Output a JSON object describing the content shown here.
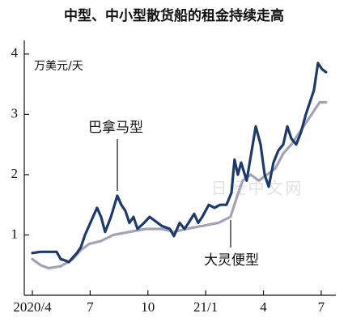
{
  "chart_data": {
    "type": "line",
    "title": "中型、中小型散货船的租金持续走高",
    "y_label": "万美元/天",
    "watermark": "日经中文网",
    "annotations": [
      "巴拿马型",
      "大灵便型"
    ],
    "xlim": [
      -0.42,
      15.76
    ],
    "xticks": [
      {
        "value": 0,
        "label": "2020/4"
      },
      {
        "value": 3,
        "label": "7"
      },
      {
        "value": 6,
        "label": "10"
      },
      {
        "value": 9,
        "label": "21/1"
      },
      {
        "value": 12,
        "label": "4"
      },
      {
        "value": 15,
        "label": "7"
      }
    ],
    "ylim": [
      0,
      4.4
    ],
    "yticks": [
      1,
      2,
      3,
      4
    ],
    "series": [
      {
        "name": "巴拿马型",
        "color": "#1d3a6b",
        "x": [
          0,
          0.42,
          0.84,
          1.26,
          1.47,
          1.68,
          1.89,
          2.31,
          2.52,
          2.73,
          3.15,
          3.36,
          3.57,
          3.78,
          4.08,
          4.41,
          4.62,
          4.83,
          5.04,
          5.25,
          5.46,
          5.8,
          6.09,
          6.3,
          6.72,
          7.14,
          7.35,
          7.65,
          7.9,
          8.11,
          8.4,
          8.61,
          8.82,
          9.16,
          9.45,
          9.75,
          10.08,
          10.34,
          10.5,
          10.67,
          10.84,
          11.13,
          11.34,
          11.6,
          11.85,
          12.06,
          12.27,
          12.52,
          12.77,
          13.03,
          13.24,
          13.45,
          13.7,
          13.95,
          14.2,
          14.41,
          14.62,
          14.83,
          15.04,
          15.25
        ],
        "values": [
          0.7,
          0.72,
          0.72,
          0.72,
          0.6,
          0.58,
          0.55,
          0.7,
          0.8,
          1.0,
          1.3,
          1.45,
          1.3,
          1.05,
          1.3,
          1.65,
          1.5,
          1.4,
          1.2,
          1.3,
          1.1,
          1.2,
          1.3,
          1.25,
          1.15,
          1.1,
          0.98,
          1.2,
          1.1,
          1.2,
          1.35,
          1.2,
          1.3,
          1.5,
          1.45,
          1.5,
          1.5,
          1.7,
          2.25,
          2.0,
          2.2,
          1.9,
          2.3,
          2.8,
          2.5,
          2.0,
          1.8,
          2.2,
          2.4,
          2.5,
          2.8,
          2.6,
          2.5,
          2.7,
          3.0,
          3.2,
          3.4,
          3.85,
          3.75,
          3.7
        ]
      },
      {
        "name": "大灵便型",
        "color": "#a3a3b8",
        "x": [
          0,
          0.42,
          0.84,
          1.47,
          2.1,
          2.52,
          2.94,
          3.57,
          4.2,
          5.04,
          5.88,
          6.72,
          7.35,
          7.98,
          8.82,
          9.66,
          10.29,
          10.59,
          10.92,
          11.34,
          11.76,
          12.18,
          12.61,
          13.03,
          13.45,
          13.87,
          14.29,
          14.71,
          14.92,
          15.25
        ],
        "values": [
          0.6,
          0.5,
          0.45,
          0.48,
          0.6,
          0.75,
          0.85,
          0.9,
          1.0,
          1.05,
          1.1,
          1.1,
          1.05,
          1.1,
          1.15,
          1.2,
          1.3,
          1.6,
          1.9,
          2.0,
          1.9,
          2.0,
          2.1,
          2.35,
          2.5,
          2.7,
          2.9,
          3.1,
          3.2,
          3.2
        ]
      }
    ]
  }
}
